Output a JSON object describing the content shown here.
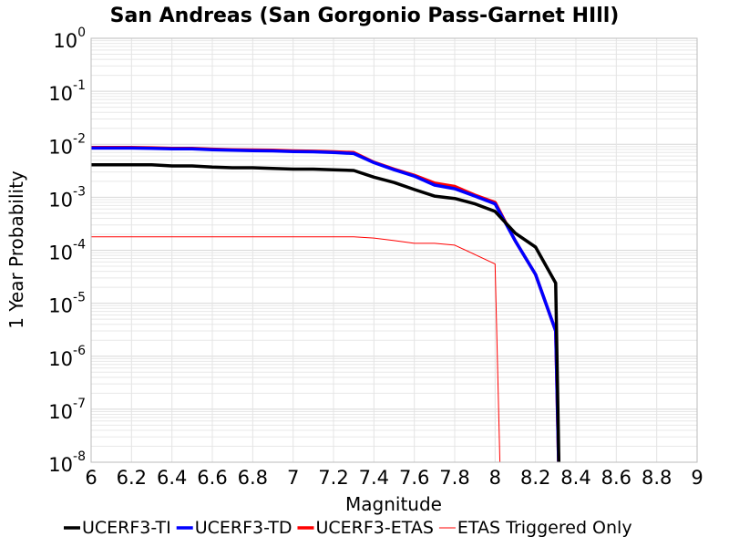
{
  "chart_data": {
    "type": "line",
    "title": "San Andreas (San Gorgonio Pass-Garnet HIll)",
    "xlabel": "Magnitude",
    "ylabel": "1 Year Probability",
    "xlim": [
      6,
      9
    ],
    "ylim": [
      1e-08,
      1
    ],
    "yscale": "log",
    "grid": true,
    "legend_position": "bottom",
    "x_ticks": [
      "6",
      "6.2",
      "6.4",
      "6.6",
      "6.8",
      "7",
      "7.2",
      "7.4",
      "7.6",
      "7.8",
      "8",
      "8.2",
      "8.4",
      "8.6",
      "8.8",
      "9"
    ],
    "x_tick_values": [
      6,
      6.2,
      6.4,
      6.6,
      6.8,
      7,
      7.2,
      7.4,
      7.6,
      7.8,
      8,
      8.2,
      8.4,
      8.6,
      8.8,
      9
    ],
    "y_ticks": [
      {
        "base": "10",
        "exp": "0",
        "value": 1
      },
      {
        "base": "10",
        "exp": "-1",
        "value": 0.1
      },
      {
        "base": "10",
        "exp": "-2",
        "value": 0.01
      },
      {
        "base": "10",
        "exp": "-3",
        "value": 0.001
      },
      {
        "base": "10",
        "exp": "-4",
        "value": 0.0001
      },
      {
        "base": "10",
        "exp": "-5",
        "value": 1e-05
      },
      {
        "base": "10",
        "exp": "-6",
        "value": 1e-06
      },
      {
        "base": "10",
        "exp": "-7",
        "value": 1e-07
      },
      {
        "base": "10",
        "exp": "-8",
        "value": 1e-08
      }
    ],
    "series": [
      {
        "name": "UCERF3-TI",
        "color": "#000000",
        "width": 3.5,
        "x": [
          6.0,
          6.1,
          6.2,
          6.3,
          6.4,
          6.5,
          6.6,
          6.7,
          6.8,
          6.9,
          7.0,
          7.1,
          7.2,
          7.3,
          7.4,
          7.5,
          7.6,
          7.7,
          7.8,
          7.9,
          8.0,
          8.1,
          8.2,
          8.3,
          8.32
        ],
        "y": [
          0.0041,
          0.0041,
          0.0041,
          0.0041,
          0.0039,
          0.0039,
          0.0037,
          0.0036,
          0.0036,
          0.0035,
          0.0034,
          0.0034,
          0.0033,
          0.0032,
          0.0024,
          0.0019,
          0.0014,
          0.00105,
          0.00095,
          0.00075,
          0.00054,
          0.00021,
          0.000115,
          2.4e-05,
          1e-09
        ]
      },
      {
        "name": "UCERF3-TD",
        "color": "#0000ff",
        "width": 3.5,
        "x": [
          6.0,
          6.1,
          6.2,
          6.3,
          6.4,
          6.5,
          6.6,
          6.7,
          6.8,
          6.9,
          7.0,
          7.1,
          7.2,
          7.3,
          7.4,
          7.5,
          7.6,
          7.7,
          7.8,
          7.9,
          8.0,
          8.1,
          8.2,
          8.3,
          8.32
        ],
        "y": [
          0.0085,
          0.0085,
          0.0085,
          0.0084,
          0.0082,
          0.0082,
          0.0079,
          0.0077,
          0.0076,
          0.0075,
          0.0073,
          0.0072,
          0.007,
          0.0067,
          0.0045,
          0.0033,
          0.0025,
          0.0017,
          0.00145,
          0.00105,
          0.00075,
          0.00015,
          3.5e-05,
          3e-06,
          1e-09
        ]
      },
      {
        "name": "UCERF3-ETAS",
        "color": "#ff0000",
        "width": 3.5,
        "x": [
          6.0,
          6.1,
          6.2,
          6.3,
          6.4,
          6.5,
          6.6,
          6.7,
          6.8,
          6.9,
          7.0,
          7.1,
          7.2,
          7.3,
          7.4,
          7.5,
          7.6,
          7.7,
          7.8,
          7.9,
          8.0,
          8.1,
          8.2,
          8.3,
          8.32
        ],
        "y": [
          0.0087,
          0.0087,
          0.0087,
          0.0086,
          0.0084,
          0.0084,
          0.0081,
          0.0079,
          0.0078,
          0.0077,
          0.0075,
          0.0074,
          0.0072,
          0.007,
          0.0046,
          0.0034,
          0.0026,
          0.00185,
          0.0016,
          0.0011,
          0.0008,
          0.00015,
          3.5e-05,
          3e-06,
          1e-09
        ]
      },
      {
        "name": "ETAS Triggered Only",
        "color": "#ff0000",
        "width": 1,
        "x": [
          6.0,
          6.5,
          7.0,
          7.3,
          7.4,
          7.5,
          7.6,
          7.7,
          7.8,
          8.0,
          8.03
        ],
        "y": [
          0.00018,
          0.00018,
          0.00018,
          0.00018,
          0.00017,
          0.000152,
          0.000135,
          0.000135,
          0.000125,
          5.5e-05,
          1e-09
        ]
      }
    ]
  }
}
